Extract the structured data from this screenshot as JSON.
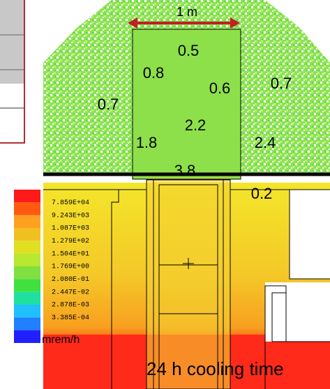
{
  "scale_label": "1 m",
  "dose_labels": [
    "0.5",
    "0.8",
    "0.6",
    "0.7",
    "0.7",
    "2.2",
    "1.8",
    "2.4",
    "3.8",
    "0.2"
  ],
  "legend": {
    "colors": [
      "#ff1a1a",
      "#ff5a10",
      "#ffa020",
      "#f0c020",
      "#e0e020",
      "#b8e830",
      "#80e040",
      "#40e040",
      "#20e0a0",
      "#20c0ff",
      "#2080ff",
      "#2020ff"
    ],
    "labels": [
      "7.859E+04",
      "9.243E+03",
      "1.087E+03",
      "1.279E+02",
      "1.504E+01",
      "1.769E+00",
      "2.080E-01",
      "2.447E-02",
      "2.878E-03",
      "3.385E-04"
    ],
    "unit": "mrem/h"
  },
  "caption": "24 h cooling time"
}
